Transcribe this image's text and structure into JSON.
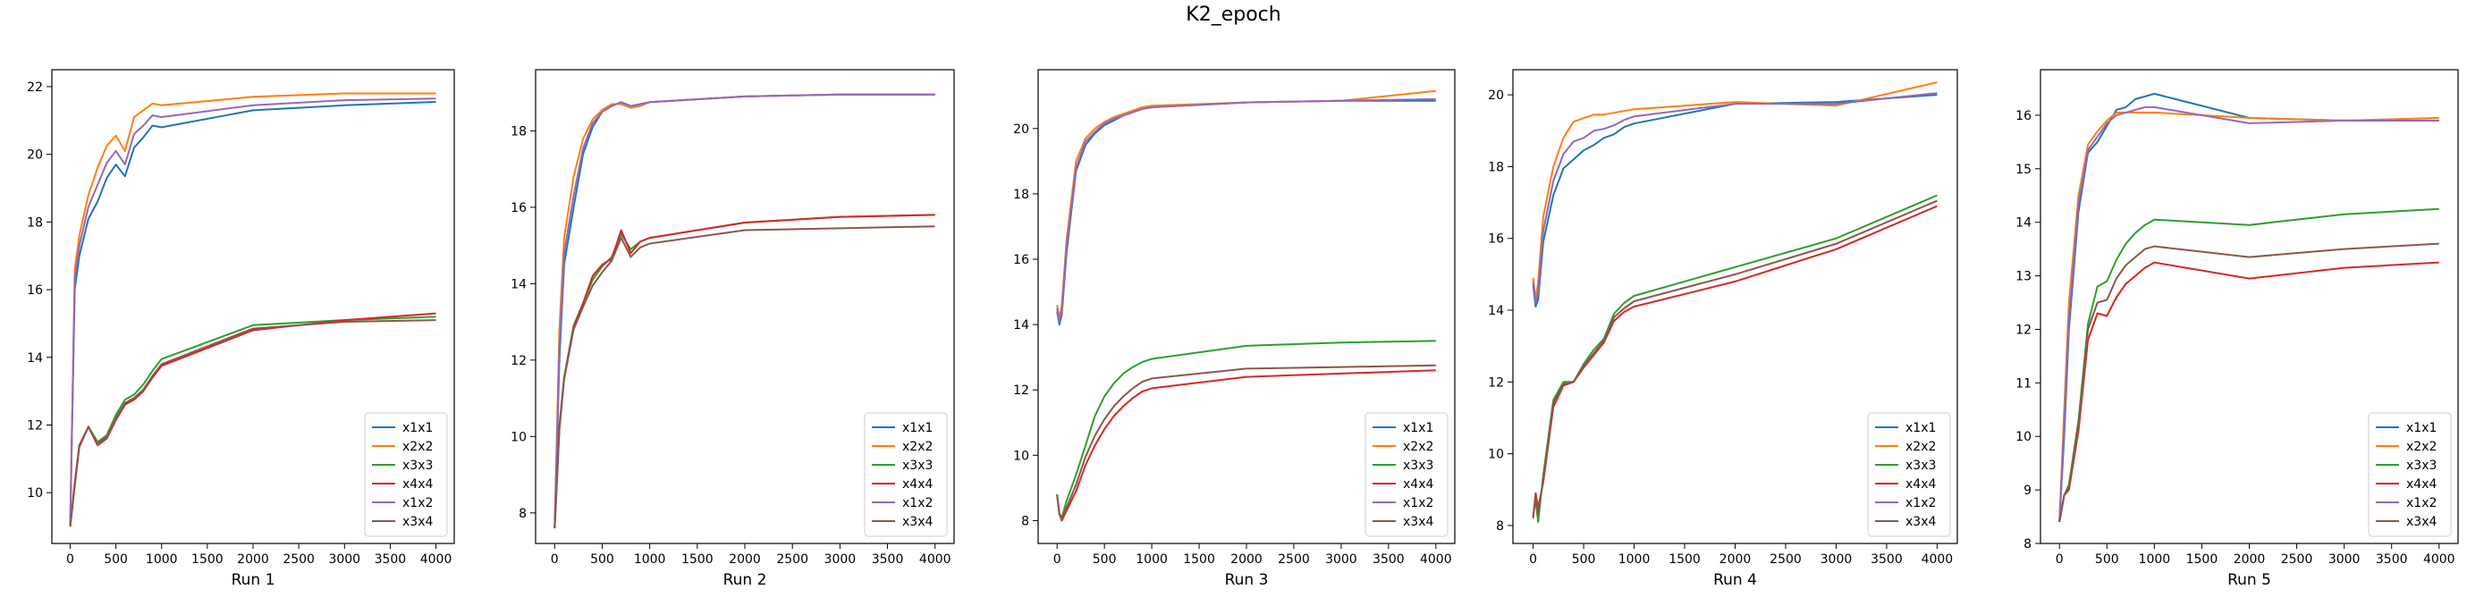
{
  "figure": {
    "title": "K2_epoch"
  },
  "series_styles": [
    {
      "name": "x1x1",
      "color": "#1f77b4"
    },
    {
      "name": "x2x2",
      "color": "#ff7f0e"
    },
    {
      "name": "x3x3",
      "color": "#2ca02c"
    },
    {
      "name": "x4x4",
      "color": "#d62728"
    },
    {
      "name": "x1x2",
      "color": "#9467bd"
    },
    {
      "name": "x3x4",
      "color": "#8c564b"
    }
  ],
  "chart_data": [
    {
      "type": "line",
      "xlabel": "Run 1",
      "xlim": [
        -200,
        4200
      ],
      "ylim": [
        8.5,
        22.5
      ],
      "xticks": [
        0,
        500,
        1000,
        1500,
        2000,
        2500,
        3000,
        3500,
        4000
      ],
      "yticks": [
        10,
        12,
        14,
        16,
        18,
        20,
        22
      ],
      "legend": "lower-right",
      "x": [
        0,
        50,
        100,
        200,
        300,
        400,
        500,
        600,
        700,
        800,
        900,
        1000,
        2000,
        3000,
        4000
      ],
      "series": [
        {
          "name": "x1x1",
          "values": [
            9.0,
            16.0,
            17.0,
            18.1,
            18.6,
            19.3,
            19.7,
            19.35,
            20.2,
            20.5,
            20.85,
            20.8,
            21.3,
            21.45,
            21.55
          ]
        },
        {
          "name": "x2x2",
          "values": [
            9.0,
            16.6,
            17.6,
            18.8,
            19.6,
            20.25,
            20.55,
            20.1,
            21.1,
            21.3,
            21.5,
            21.45,
            21.7,
            21.8,
            21.8
          ]
        },
        {
          "name": "x3x3",
          "values": [
            9.0,
            10.3,
            11.4,
            11.95,
            11.5,
            11.7,
            12.3,
            12.75,
            12.9,
            13.2,
            13.6,
            13.95,
            14.95,
            15.1,
            15.2
          ]
        },
        {
          "name": "x4x4",
          "values": [
            9.0,
            10.2,
            11.35,
            11.95,
            11.4,
            11.6,
            12.15,
            12.6,
            12.75,
            13.0,
            13.4,
            13.75,
            14.8,
            15.1,
            15.3
          ]
        },
        {
          "name": "x1x2",
          "values": [
            9.0,
            16.3,
            17.3,
            18.45,
            19.1,
            19.75,
            20.1,
            19.7,
            20.6,
            20.85,
            21.15,
            21.1,
            21.45,
            21.6,
            21.65
          ]
        },
        {
          "name": "x3x4",
          "values": [
            9.0,
            10.25,
            11.4,
            11.95,
            11.45,
            11.65,
            12.2,
            12.65,
            12.8,
            13.05,
            13.45,
            13.8,
            14.85,
            15.05,
            15.1
          ]
        }
      ]
    },
    {
      "type": "line",
      "xlabel": "Run 2",
      "xlim": [
        -200,
        4200
      ],
      "ylim": [
        7.2,
        19.6
      ],
      "xticks": [
        0,
        500,
        1000,
        1500,
        2000,
        2500,
        3000,
        3500,
        4000
      ],
      "yticks": [
        8,
        10,
        12,
        14,
        16,
        18
      ],
      "legend": "lower-right",
      "x": [
        0,
        50,
        100,
        200,
        300,
        400,
        500,
        600,
        700,
        800,
        900,
        1000,
        2000,
        3000,
        4000
      ],
      "series": [
        {
          "name": "x1x1",
          "values": [
            7.6,
            12.0,
            14.5,
            16.0,
            17.4,
            18.1,
            18.5,
            18.65,
            18.75,
            18.65,
            18.7,
            18.75,
            18.9,
            18.95,
            18.95
          ]
        },
        {
          "name": "x2x2",
          "values": [
            7.6,
            12.8,
            15.2,
            16.8,
            17.8,
            18.3,
            18.55,
            18.7,
            18.7,
            18.6,
            18.65,
            18.75,
            18.9,
            18.95,
            18.95
          ]
        },
        {
          "name": "x3x3",
          "values": [
            7.6,
            10.3,
            11.55,
            12.9,
            13.5,
            14.1,
            14.45,
            14.7,
            15.3,
            14.9,
            15.1,
            15.2,
            15.6,
            15.75,
            15.8
          ]
        },
        {
          "name": "x4x4",
          "values": [
            7.6,
            10.2,
            11.5,
            12.85,
            13.5,
            14.2,
            14.5,
            14.65,
            15.4,
            14.8,
            15.1,
            15.2,
            15.6,
            15.75,
            15.8
          ]
        },
        {
          "name": "x1x2",
          "values": [
            7.6,
            12.3,
            14.8,
            16.3,
            17.55,
            18.2,
            18.5,
            18.65,
            18.75,
            18.65,
            18.7,
            18.75,
            18.9,
            18.95,
            18.95
          ]
        },
        {
          "name": "x3x4",
          "values": [
            7.6,
            10.2,
            11.5,
            12.8,
            13.4,
            13.95,
            14.3,
            14.6,
            15.2,
            14.7,
            14.95,
            15.05,
            15.4,
            15.45,
            15.5
          ]
        }
      ]
    },
    {
      "type": "line",
      "xlabel": "Run 3",
      "xlim": [
        -200,
        4200
      ],
      "ylim": [
        7.3,
        21.8
      ],
      "xticks": [
        0,
        500,
        1000,
        1500,
        2000,
        2500,
        3000,
        3500,
        4000
      ],
      "yticks": [
        8,
        10,
        12,
        14,
        16,
        18,
        20
      ],
      "legend": "lower-right",
      "x": [
        0,
        25,
        50,
        100,
        200,
        300,
        400,
        500,
        600,
        700,
        800,
        900,
        1000,
        2000,
        3000,
        4000
      ],
      "series": [
        {
          "name": "x1x1",
          "values": [
            14.4,
            14.0,
            14.3,
            16.2,
            18.7,
            19.5,
            19.85,
            20.1,
            20.25,
            20.4,
            20.5,
            20.6,
            20.65,
            20.8,
            20.85,
            20.85
          ]
        },
        {
          "name": "x2x2",
          "values": [
            14.6,
            14.2,
            14.6,
            16.6,
            19.0,
            19.7,
            20.0,
            20.2,
            20.35,
            20.45,
            20.55,
            20.65,
            20.7,
            20.8,
            20.85,
            21.15
          ]
        },
        {
          "name": "x3x3",
          "values": [
            8.8,
            8.2,
            8.1,
            8.6,
            9.4,
            10.3,
            11.2,
            11.8,
            12.2,
            12.5,
            12.7,
            12.85,
            12.95,
            13.35,
            13.45,
            13.5
          ]
        },
        {
          "name": "x4x4",
          "values": [
            8.8,
            8.2,
            8.0,
            8.3,
            8.9,
            9.7,
            10.3,
            10.8,
            11.2,
            11.5,
            11.75,
            11.95,
            12.05,
            12.4,
            12.5,
            12.6
          ]
        },
        {
          "name": "x1x2",
          "values": [
            14.5,
            14.1,
            14.4,
            16.4,
            18.8,
            19.6,
            19.9,
            20.15,
            20.3,
            20.4,
            20.5,
            20.6,
            20.65,
            20.8,
            20.85,
            20.9
          ]
        },
        {
          "name": "x3x4",
          "values": [
            8.8,
            8.2,
            8.05,
            8.4,
            9.1,
            9.95,
            10.6,
            11.1,
            11.5,
            11.8,
            12.05,
            12.25,
            12.35,
            12.65,
            12.7,
            12.75
          ]
        }
      ]
    },
    {
      "type": "line",
      "xlabel": "Run 4",
      "xlim": [
        -200,
        4200
      ],
      "ylim": [
        7.5,
        20.7
      ],
      "xticks": [
        0,
        500,
        1000,
        1500,
        2000,
        2500,
        3000,
        3500,
        4000
      ],
      "yticks": [
        8,
        10,
        12,
        14,
        16,
        18,
        20
      ],
      "legend": "lower-right",
      "x": [
        0,
        25,
        50,
        100,
        200,
        300,
        400,
        500,
        600,
        700,
        800,
        900,
        1000,
        2000,
        3000,
        4000
      ],
      "series": [
        {
          "name": "x1x1",
          "values": [
            14.7,
            14.1,
            14.3,
            15.9,
            17.2,
            17.95,
            18.2,
            18.45,
            18.6,
            18.8,
            18.9,
            19.1,
            19.2,
            19.75,
            19.8,
            20.0
          ]
        },
        {
          "name": "x2x2",
          "values": [
            14.9,
            14.3,
            14.8,
            16.6,
            18.0,
            18.8,
            19.25,
            19.35,
            19.45,
            19.45,
            19.5,
            19.55,
            19.6,
            19.8,
            19.7,
            20.35
          ]
        },
        {
          "name": "x3x3",
          "values": [
            8.3,
            8.7,
            8.1,
            9.4,
            11.5,
            12.0,
            12.0,
            12.5,
            12.9,
            13.2,
            13.9,
            14.2,
            14.4,
            15.2,
            16.0,
            17.2
          ]
        },
        {
          "name": "x4x4",
          "values": [
            8.2,
            8.9,
            8.5,
            9.2,
            11.3,
            11.9,
            12.0,
            12.4,
            12.75,
            13.1,
            13.7,
            13.95,
            14.1,
            14.8,
            15.7,
            16.9
          ]
        },
        {
          "name": "x1x2",
          "values": [
            14.8,
            14.2,
            14.5,
            16.2,
            17.6,
            18.35,
            18.7,
            18.8,
            19.0,
            19.05,
            19.15,
            19.3,
            19.4,
            19.75,
            19.75,
            20.05
          ]
        },
        {
          "name": "x3x4",
          "values": [
            8.25,
            8.8,
            8.3,
            9.3,
            11.4,
            11.95,
            12.0,
            12.45,
            12.8,
            13.15,
            13.8,
            14.05,
            14.25,
            15.0,
            15.85,
            17.05
          ]
        }
      ]
    },
    {
      "type": "line",
      "xlabel": "Run 5",
      "xlim": [
        -200,
        4200
      ],
      "ylim": [
        8.0,
        16.85
      ],
      "xticks": [
        0,
        500,
        1000,
        1500,
        2000,
        2500,
        3000,
        3500,
        4000
      ],
      "yticks": [
        8,
        9,
        10,
        11,
        12,
        13,
        14,
        15,
        16
      ],
      "legend": "lower-right",
      "x": [
        0,
        50,
        100,
        200,
        300,
        400,
        500,
        600,
        700,
        800,
        900,
        1000,
        2000,
        3000,
        4000
      ],
      "series": [
        {
          "name": "x1x1",
          "values": [
            8.4,
            10.0,
            12.0,
            14.2,
            15.3,
            15.5,
            15.8,
            16.1,
            16.15,
            16.3,
            16.35,
            16.4,
            15.95,
            15.9,
            15.9
          ]
        },
        {
          "name": "x2x2",
          "values": [
            8.4,
            10.5,
            12.5,
            14.5,
            15.45,
            15.7,
            15.9,
            16.05,
            16.05,
            16.05,
            16.05,
            16.05,
            15.95,
            15.9,
            15.95
          ]
        },
        {
          "name": "x3x3",
          "values": [
            8.4,
            8.9,
            9.1,
            10.3,
            12.1,
            12.8,
            12.9,
            13.3,
            13.6,
            13.8,
            13.95,
            14.05,
            13.95,
            14.15,
            14.25
          ]
        },
        {
          "name": "x4x4",
          "values": [
            8.4,
            8.9,
            9.0,
            10.1,
            11.8,
            12.3,
            12.25,
            12.6,
            12.85,
            13.0,
            13.15,
            13.25,
            12.95,
            13.15,
            13.25
          ]
        },
        {
          "name": "x1x2",
          "values": [
            8.4,
            10.2,
            12.2,
            14.35,
            15.35,
            15.6,
            15.85,
            16.0,
            16.05,
            16.1,
            16.15,
            16.15,
            15.85,
            15.9,
            15.9
          ]
        },
        {
          "name": "x3x4",
          "values": [
            8.4,
            8.9,
            9.05,
            10.2,
            12.0,
            12.5,
            12.55,
            12.95,
            13.2,
            13.35,
            13.5,
            13.55,
            13.35,
            13.5,
            13.6
          ]
        }
      ]
    }
  ]
}
